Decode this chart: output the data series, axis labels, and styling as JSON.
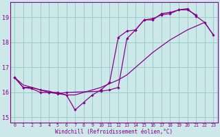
{
  "xlabel": "Windchill (Refroidissement éolien,°C)",
  "bg_color": "#cce8e8",
  "line_color": "#880088",
  "grid_color": "#99cccc",
  "xlim": [
    -0.5,
    23.5
  ],
  "ylim": [
    14.8,
    19.6
  ],
  "yticks": [
    15,
    16,
    17,
    18,
    19
  ],
  "xticks": [
    0,
    1,
    2,
    3,
    4,
    5,
    6,
    7,
    8,
    9,
    10,
    11,
    12,
    13,
    14,
    15,
    16,
    17,
    18,
    19,
    20,
    21,
    22,
    23
  ],
  "line1_y": [
    16.6,
    16.2,
    16.2,
    16.1,
    16.0,
    16.0,
    15.9,
    15.3,
    15.6,
    15.9,
    16.1,
    16.4,
    18.2,
    18.45,
    18.5,
    18.9,
    18.9,
    19.15,
    19.2,
    19.3,
    19.3,
    19.1,
    null,
    null
  ],
  "line2_y": [
    16.6,
    16.2,
    16.15,
    16.0,
    16.0,
    15.95,
    16.0,
    null,
    null,
    null,
    16.05,
    16.1,
    16.2,
    18.15,
    18.5,
    18.9,
    18.95,
    19.1,
    19.15,
    19.3,
    19.35,
    19.05,
    18.8,
    18.3
  ],
  "line3_y": [
    16.6,
    16.3,
    16.2,
    16.1,
    16.05,
    15.95,
    15.9,
    15.9,
    16.0,
    16.1,
    16.2,
    16.35,
    16.5,
    16.7,
    17.0,
    17.3,
    17.6,
    17.85,
    18.1,
    18.3,
    18.5,
    18.65,
    18.8,
    18.3
  ]
}
